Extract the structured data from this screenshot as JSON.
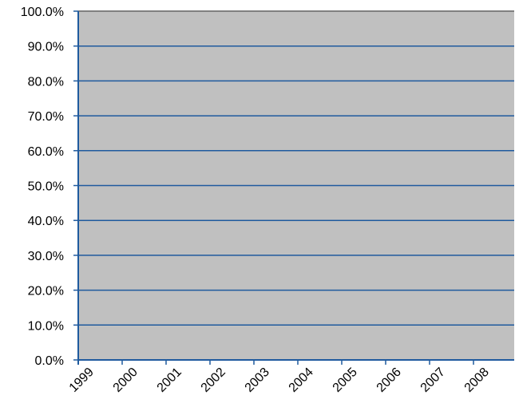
{
  "chart_data": {
    "type": "bar",
    "categories": [
      "1999",
      "2000",
      "2001",
      "2002",
      "2003",
      "2004",
      "2005",
      "2006",
      "2007",
      "2008"
    ],
    "series": [],
    "yticks": [
      "0.0%",
      "10.0%",
      "20.0%",
      "30.0%",
      "40.0%",
      "50.0%",
      "60.0%",
      "70.0%",
      "80.0%",
      "90.0%",
      "100.0%"
    ],
    "ylim": [
      0,
      100
    ],
    "y_unit": "%",
    "grid": true,
    "legend": "none",
    "colors": {
      "plot_background": "#c0c0c0",
      "gridline": "#1f5a9e",
      "axis": "#1f5a9e",
      "plot_border": "#808080"
    }
  }
}
